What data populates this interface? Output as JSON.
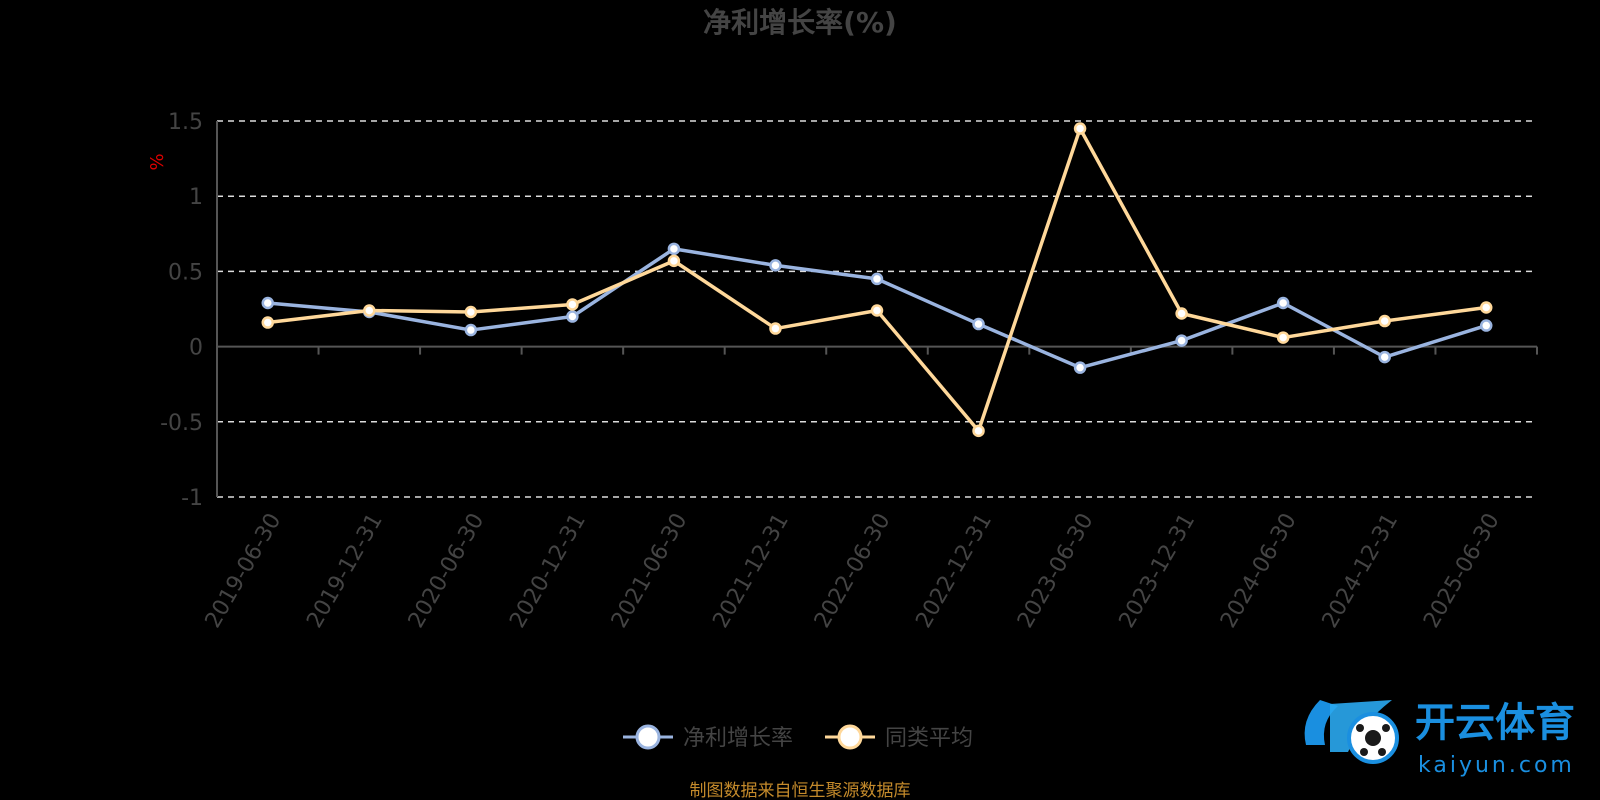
{
  "chart_data": {
    "type": "line",
    "title": "净利增长率(%)",
    "ylabel": "%",
    "ylim": [
      -1,
      1.5
    ],
    "yticks": [
      1.5,
      1,
      0.5,
      0,
      -0.5,
      -1
    ],
    "ytick_labels": [
      "1.5",
      "1",
      "0.5",
      "0",
      "-0.5",
      "-1"
    ],
    "categories": [
      "2019-06-30",
      "2019-12-31",
      "2020-06-30",
      "2020-12-31",
      "2021-06-30",
      "2021-12-31",
      "2022-06-30",
      "2022-12-31",
      "2023-06-30",
      "2023-12-31",
      "2024-06-30",
      "2024-12-31",
      "2025-06-30"
    ],
    "series": [
      {
        "name": "净利增长率",
        "color": "#9ab4e0",
        "values": [
          0.29,
          0.23,
          0.11,
          0.2,
          0.65,
          0.54,
          0.45,
          0.15,
          -0.14,
          0.04,
          0.29,
          -0.07,
          0.14
        ]
      },
      {
        "name": "同类平均",
        "color": "#ffd89a",
        "values": [
          0.16,
          0.24,
          0.23,
          0.28,
          0.57,
          0.12,
          0.24,
          -0.56,
          1.45,
          0.22,
          0.06,
          0.17,
          0.26
        ]
      }
    ],
    "grid": true,
    "legend_position": "bottom"
  },
  "footnote": "制图数据来自恒生聚源数据库",
  "watermark": {
    "text": "开云体育",
    "sub": "kaiyun.com"
  }
}
